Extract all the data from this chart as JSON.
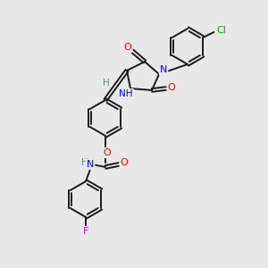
{
  "background_color": "#e8e8e8",
  "bond_color": "#1a1a1a",
  "atom_colors": {
    "O": "#ff0000",
    "N": "#0000ff",
    "Cl": "#00aa00",
    "F": "#cc00cc",
    "H": "#5a8a8a",
    "C": "#1a1a1a"
  }
}
